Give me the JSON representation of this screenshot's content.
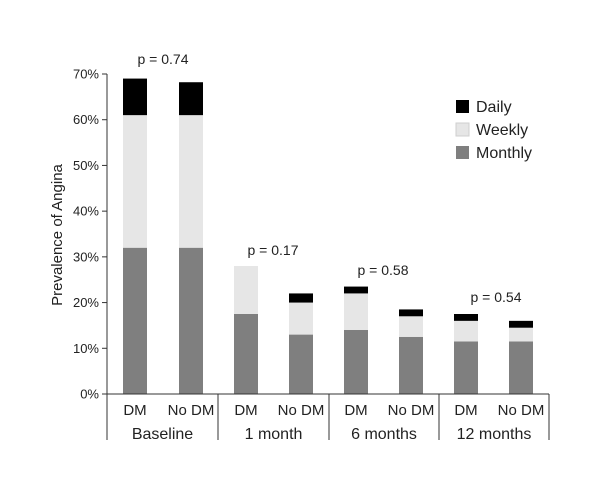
{
  "chart_data": {
    "type": "bar",
    "stacked": true,
    "ylabel": "Prevalence of Angina",
    "ylim": [
      0,
      70
    ],
    "yticks": [
      "0%",
      "10%",
      "20%",
      "30%",
      "40%",
      "50%",
      "60%",
      "70%"
    ],
    "grid": false,
    "legend_position": "top-right",
    "categories": [
      "DM",
      "No DM",
      "DM",
      "No DM",
      "DM",
      "No DM",
      "DM",
      "No DM"
    ],
    "groups": [
      {
        "label": "Baseline",
        "p_value": "p = 0.74"
      },
      {
        "label": "1 month",
        "p_value": "p = 0.17"
      },
      {
        "label": "6 months",
        "p_value": "p = 0.58"
      },
      {
        "label": "12 months",
        "p_value": "p = 0.54"
      }
    ],
    "series": [
      {
        "name": "Monthly",
        "color": "#7f7f7f",
        "values": [
          32,
          32,
          17.5,
          13,
          14,
          12.5,
          11.5,
          11.5
        ]
      },
      {
        "name": "Weekly",
        "color": "#e6e6e6",
        "values": [
          29,
          29,
          10.5,
          7,
          8,
          4.5,
          4.5,
          3
        ]
      },
      {
        "name": "Daily",
        "color": "#000000",
        "values": [
          8,
          7.2,
          0,
          2,
          1.5,
          1.5,
          1.5,
          1.5
        ]
      }
    ],
    "legend_order": [
      "Daily",
      "Weekly",
      "Monthly"
    ]
  }
}
